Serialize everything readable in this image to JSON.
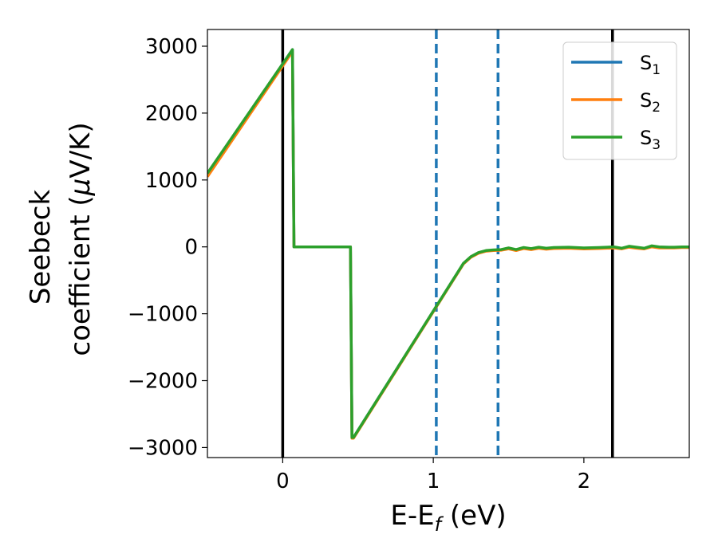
{
  "chart_data": {
    "type": "line",
    "title": "",
    "xlabel": {
      "pre": "E-E",
      "sub": "f",
      "post": " (eV)"
    },
    "ylabel": {
      "line1": "Seebeck",
      "line2_pre": "coefficient  (",
      "mu": "μ",
      "line2_post": "V/K)"
    },
    "xlim": [
      -0.5,
      2.7
    ],
    "ylim": [
      -3150,
      3250
    ],
    "xticks": [
      0,
      1,
      2
    ],
    "yticks": [
      -3000,
      -2000,
      -1000,
      0,
      1000,
      2000,
      3000
    ],
    "xtick_labels": [
      "0",
      "1",
      "2"
    ],
    "ytick_labels": [
      "−3000",
      "−2000",
      "−1000",
      "0",
      "1000",
      "2000",
      "3000"
    ],
    "grid": false,
    "legend_position": "top-right",
    "vlines": [
      {
        "x": 0.0,
        "style": "solid",
        "color": "#000000"
      },
      {
        "x": 2.19,
        "style": "solid",
        "color": "#000000"
      },
      {
        "x": 1.02,
        "style": "dashed",
        "color": "#1f77b4"
      },
      {
        "x": 1.43,
        "style": "dashed",
        "color": "#1f77b4"
      }
    ],
    "series": [
      {
        "name": "S",
        "sub": "1",
        "color": "#1f77b4",
        "x": [
          -0.5,
          0.065,
          0.075,
          0.45,
          0.46,
          0.47,
          1.2,
          1.25,
          1.3,
          1.35,
          1.4,
          1.45,
          1.5,
          1.55,
          1.6,
          1.65,
          1.7,
          1.75,
          1.8,
          1.9,
          2.0,
          2.1,
          2.2,
          2.25,
          2.3,
          2.35,
          2.4,
          2.45,
          2.5,
          2.55,
          2.6,
          2.65,
          2.7
        ],
        "y": [
          1080,
          2950,
          0,
          0,
          -2850,
          -2850,
          -250,
          -150,
          -90,
          -60,
          -50,
          -45,
          -20,
          -45,
          -15,
          -30,
          -10,
          -25,
          -15,
          -10,
          -20,
          -15,
          -5,
          -25,
          5,
          -10,
          -25,
          10,
          -5,
          -5,
          -10,
          -5,
          -5
        ]
      },
      {
        "name": "S",
        "sub": "2",
        "color": "#ff7f0e",
        "x": [
          -0.5,
          0.065,
          0.075,
          0.45,
          0.46,
          0.47,
          1.2,
          1.25,
          1.3,
          1.35,
          1.4,
          1.45,
          1.5,
          1.55,
          1.6,
          1.65,
          1.7,
          1.75,
          1.8,
          1.9,
          2.0,
          2.1,
          2.2,
          2.25,
          2.3,
          2.35,
          2.4,
          2.45,
          2.5,
          2.55,
          2.6,
          2.65,
          2.7
        ],
        "y": [
          1050,
          2920,
          0,
          0,
          -2860,
          -2860,
          -255,
          -155,
          -95,
          -65,
          -55,
          -50,
          -30,
          -55,
          -25,
          -40,
          -20,
          -35,
          -25,
          -20,
          -30,
          -25,
          -15,
          -30,
          -5,
          -20,
          -30,
          0,
          -15,
          -15,
          -15,
          -10,
          -10
        ]
      },
      {
        "name": "S",
        "sub": "3",
        "color": "#2ca02c",
        "x": [
          -0.5,
          0.065,
          0.075,
          0.45,
          0.46,
          0.47,
          1.2,
          1.25,
          1.3,
          1.35,
          1.4,
          1.45,
          1.5,
          1.55,
          1.6,
          1.65,
          1.7,
          1.75,
          1.8,
          1.9,
          2.0,
          2.1,
          2.2,
          2.25,
          2.3,
          2.35,
          2.4,
          2.45,
          2.5,
          2.55,
          2.6,
          2.65,
          2.7
        ],
        "y": [
          1100,
          2950,
          0,
          0,
          -2850,
          -2850,
          -245,
          -145,
          -85,
          -55,
          -45,
          -40,
          -15,
          -40,
          -10,
          -25,
          -5,
          -20,
          -10,
          -5,
          -15,
          -10,
          0,
          -20,
          10,
          -5,
          -20,
          15,
          0,
          -5,
          -5,
          0,
          0
        ]
      }
    ]
  }
}
